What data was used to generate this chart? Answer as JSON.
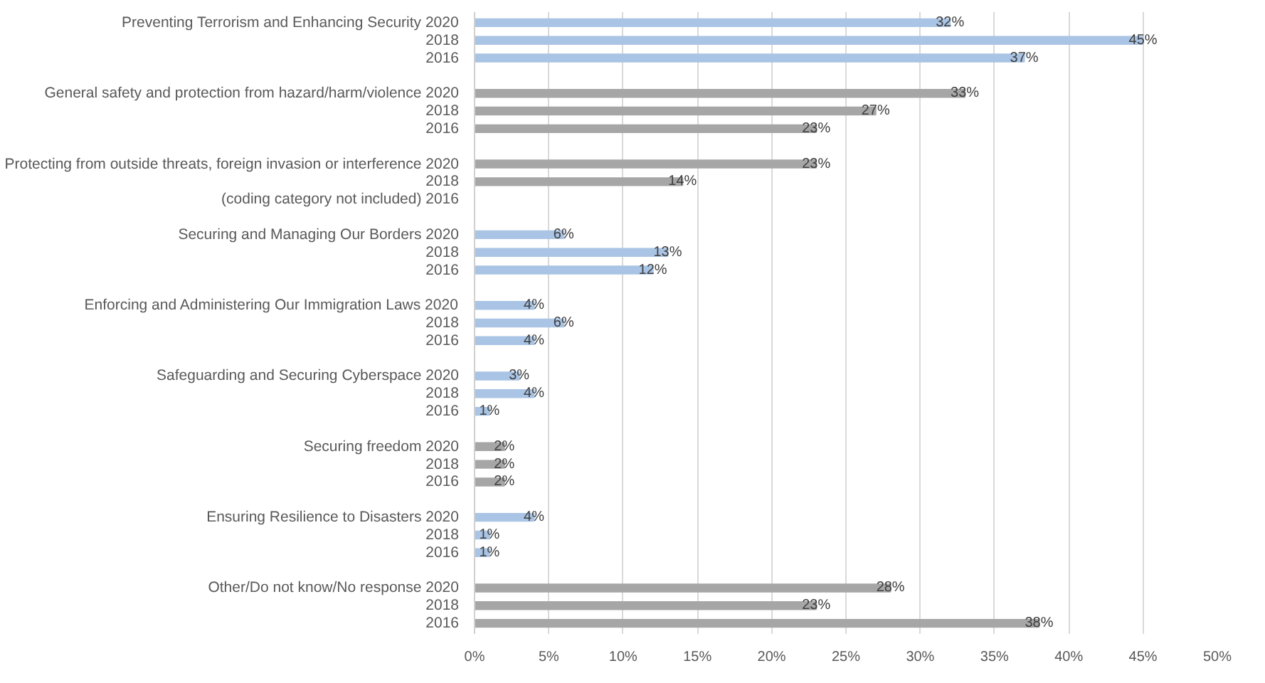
{
  "chart_data": {
    "type": "bar",
    "orientation": "horizontal",
    "grid": "x",
    "categories": [
      "Preventing Terrorism and Enhancing Security 2020",
      "2018",
      "2016",
      null,
      "General safety and protection from hazard/harm/violence 2020",
      "2018",
      "2016",
      null,
      "Protecting from outside threats, foreign invasion or interference 2020",
      "2018",
      "(coding category not included) 2016",
      null,
      "Securing and Managing Our Borders 2020",
      "2018",
      "2016",
      null,
      "Enforcing and Administering Our Immigration Laws 2020",
      "2018",
      "2016",
      null,
      "Safeguarding and Securing Cyberspace 2020",
      "2018",
      "2016",
      null,
      "Securing freedom 2020",
      "2018",
      "2016",
      null,
      "Ensuring Resilience to Disasters 2020",
      "2018",
      "2016",
      null,
      "Other/Do not know/No response 2020",
      "2018",
      "2016"
    ],
    "values": [
      32,
      45,
      37,
      null,
      33,
      27,
      23,
      null,
      23,
      14,
      null,
      null,
      6,
      13,
      12,
      null,
      4,
      6,
      4,
      null,
      3,
      4,
      1,
      null,
      2,
      2,
      2,
      null,
      4,
      1,
      1,
      null,
      28,
      23,
      38
    ],
    "value_labels": [
      "32%",
      "45%",
      "37%",
      null,
      "33%",
      "27%",
      "23%",
      null,
      "23%",
      "14%",
      null,
      null,
      "6%",
      "13%",
      "12%",
      null,
      "4%",
      "6%",
      "4%",
      null,
      "3%",
      "4%",
      "1%",
      null,
      "2%",
      "2%",
      "2%",
      null,
      "4%",
      "1%",
      "1%",
      null,
      "28%",
      "23%",
      "38%"
    ],
    "colors": [
      "#a9c4e4",
      "#a9c4e4",
      "#a9c4e4",
      null,
      "#a6a6a6",
      "#a6a6a6",
      "#a6a6a6",
      null,
      "#a6a6a6",
      "#a6a6a6",
      null,
      null,
      "#a9c4e4",
      "#a9c4e4",
      "#a9c4e4",
      null,
      "#a9c4e4",
      "#a9c4e4",
      "#a9c4e4",
      null,
      "#a9c4e4",
      "#a9c4e4",
      "#a9c4e4",
      null,
      "#a6a6a6",
      "#a6a6a6",
      "#a6a6a6",
      null,
      "#a9c4e4",
      "#a9c4e4",
      "#a9c4e4",
      null,
      "#a6a6a6",
      "#a6a6a6",
      "#a6a6a6"
    ],
    "xlim": [
      0,
      50
    ],
    "xticks": [
      {
        "value": 0,
        "label": "0%"
      },
      {
        "value": 5,
        "label": "5%"
      },
      {
        "value": 10,
        "label": "10%"
      },
      {
        "value": 15,
        "label": "15%"
      },
      {
        "value": 20,
        "label": "20%"
      },
      {
        "value": 25,
        "label": "25%"
      },
      {
        "value": 30,
        "label": "30%"
      },
      {
        "value": 35,
        "label": "35%"
      },
      {
        "value": 40,
        "label": "40%"
      },
      {
        "value": 45,
        "label": "45%"
      },
      {
        "value": 50,
        "label": "50%"
      }
    ]
  }
}
